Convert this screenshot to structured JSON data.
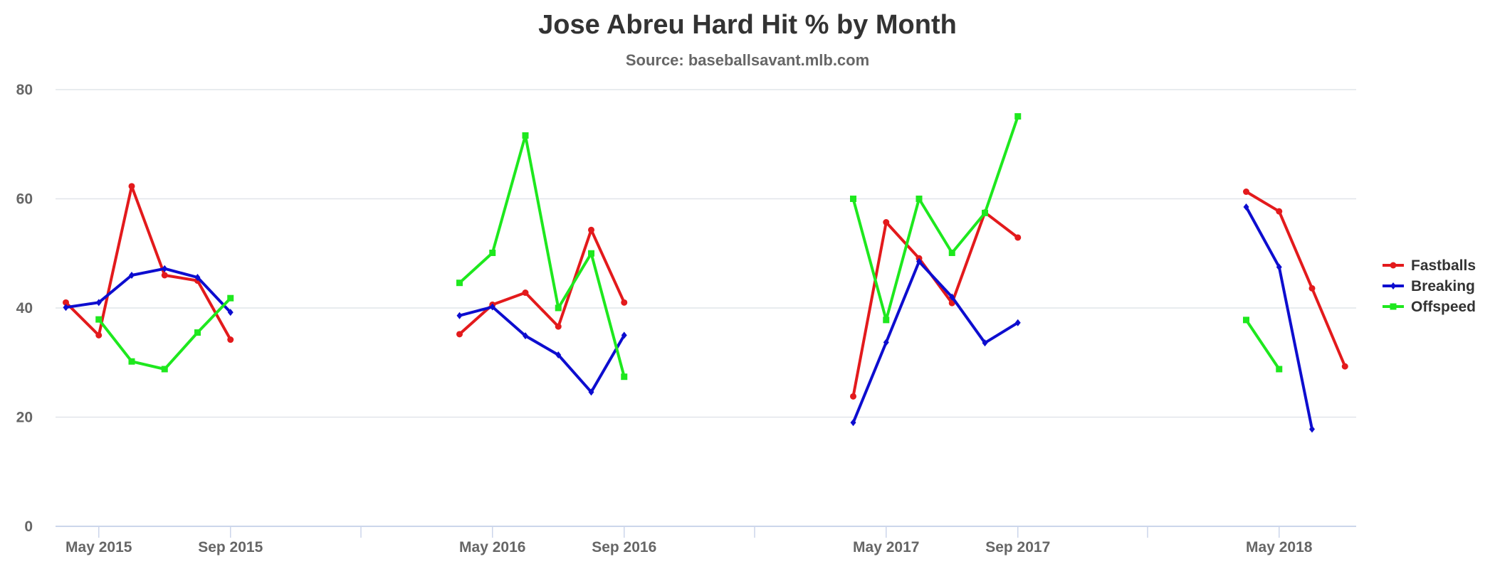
{
  "chart_data": {
    "type": "line",
    "title": "Jose Abreu Hard Hit % by Month",
    "subtitle": "Source: baseballsavant.mlb.com",
    "xlabel": "",
    "ylabel": "",
    "ylim": [
      0,
      80
    ],
    "yticks": [
      0,
      20,
      40,
      60,
      80
    ],
    "grid": true,
    "legend_position": "right",
    "x_ticks": [
      {
        "label": "May 2015",
        "month": "2015-05"
      },
      {
        "label": "Sep 2015",
        "month": "2015-09"
      },
      {
        "label": "May 2016",
        "month": "2016-05"
      },
      {
        "label": "Sep 2016",
        "month": "2016-09"
      },
      {
        "label": "May 2017",
        "month": "2017-05"
      },
      {
        "label": "Sep 2017",
        "month": "2017-09"
      },
      {
        "label": "May 2018",
        "month": "2018-05"
      }
    ],
    "series": [
      {
        "name": "Fastballs",
        "color": "#e31a1c",
        "marker": "circle",
        "points": [
          [
            "2015-04",
            41
          ],
          [
            "2015-05",
            35
          ],
          [
            "2015-06",
            62.3
          ],
          [
            "2015-07",
            46
          ],
          [
            "2015-08",
            45
          ],
          [
            "2015-09",
            34.2
          ],
          [
            "2016-04",
            35.2
          ],
          [
            "2016-05",
            40.6
          ],
          [
            "2016-06",
            42.8
          ],
          [
            "2016-07",
            36.6
          ],
          [
            "2016-08",
            54.3
          ],
          [
            "2016-09",
            41
          ],
          [
            "2017-04",
            23.8
          ],
          [
            "2017-05",
            55.7
          ],
          [
            "2017-06",
            49.1
          ],
          [
            "2017-07",
            40.9
          ],
          [
            "2017-08",
            57.5
          ],
          [
            "2017-09",
            52.9
          ],
          [
            "2018-04",
            61.3
          ],
          [
            "2018-05",
            57.7
          ],
          [
            "2018-06",
            43.6
          ],
          [
            "2018-07",
            29.3
          ]
        ]
      },
      {
        "name": "Breaking",
        "color": "#0d0dcf",
        "marker": "diamond",
        "points": [
          [
            "2015-04",
            40.1
          ],
          [
            "2015-05",
            41
          ],
          [
            "2015-06",
            46
          ],
          [
            "2015-07",
            47.2
          ],
          [
            "2015-08",
            45.6
          ],
          [
            "2015-09",
            39.2
          ],
          [
            "2016-04",
            38.6
          ],
          [
            "2016-05",
            40.2
          ],
          [
            "2016-06",
            34.9
          ],
          [
            "2016-07",
            31.4
          ],
          [
            "2016-08",
            24.6
          ],
          [
            "2016-09",
            35
          ],
          [
            "2017-04",
            19
          ],
          [
            "2017-05",
            33.7
          ],
          [
            "2017-06",
            48.5
          ],
          [
            "2017-07",
            42
          ],
          [
            "2017-08",
            33.6
          ],
          [
            "2017-09",
            37.3
          ],
          [
            "2018-04",
            58.5
          ],
          [
            "2018-05",
            47.5
          ],
          [
            "2018-06",
            17.8
          ]
        ]
      },
      {
        "name": "Offspeed",
        "color": "#1ee81e",
        "marker": "square",
        "points": [
          [
            "2015-05",
            37.9
          ],
          [
            "2015-06",
            30.2
          ],
          [
            "2015-07",
            28.8
          ],
          [
            "2015-08",
            35.5
          ],
          [
            "2015-09",
            41.8
          ],
          [
            "2016-04",
            44.6
          ],
          [
            "2016-05",
            50.1
          ],
          [
            "2016-06",
            71.6
          ],
          [
            "2016-07",
            40
          ],
          [
            "2016-08",
            50
          ],
          [
            "2016-09",
            27.4
          ],
          [
            "2017-04",
            60
          ],
          [
            "2017-05",
            37.8
          ],
          [
            "2017-06",
            60
          ],
          [
            "2017-07",
            50.1
          ],
          [
            "2017-08",
            57.4
          ],
          [
            "2017-09",
            75.1
          ],
          [
            "2018-04",
            37.8
          ],
          [
            "2018-05",
            28.8
          ]
        ]
      }
    ]
  }
}
